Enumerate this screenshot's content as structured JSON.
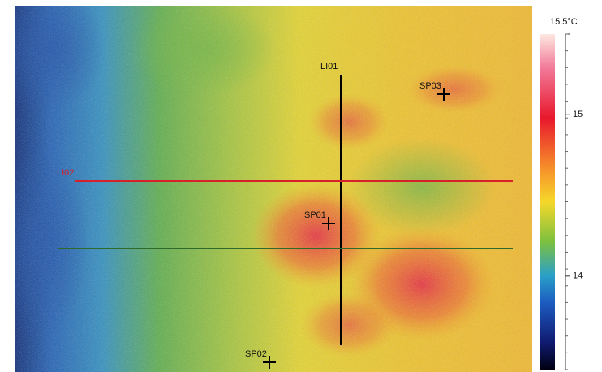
{
  "image": {
    "lines": [
      {
        "label": "LI01"
      },
      {
        "label": "LI02"
      }
    ],
    "spots": [
      {
        "label": "SP01"
      },
      {
        "label": "SP02"
      },
      {
        "label": "SP03"
      }
    ]
  },
  "colorbar": {
    "lim": [
      13.42,
      15.5
    ],
    "ticks": [
      {
        "value": 15.5,
        "label": "15.5°C"
      },
      {
        "value": 15,
        "label": "15"
      },
      {
        "value": 14,
        "label": "14"
      }
    ]
  }
}
